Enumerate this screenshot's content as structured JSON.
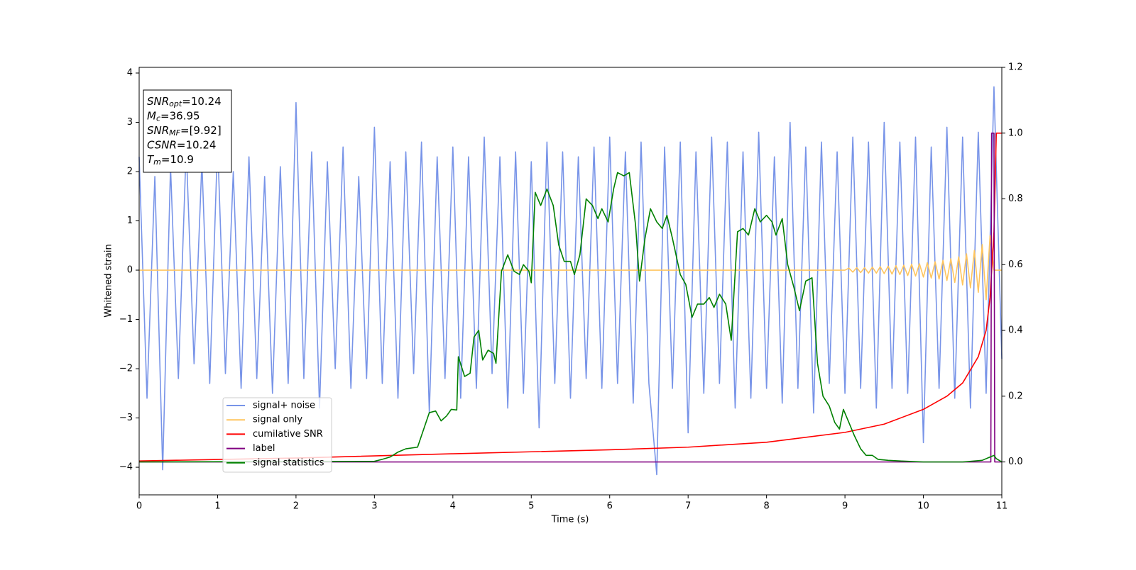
{
  "chart_data": {
    "type": "line",
    "xlabel": "Time (s)",
    "ylabel": "Whitened strain",
    "xlim": [
      0,
      11
    ],
    "ylim": [
      -4.56,
      4.115
    ],
    "y2lim": [
      -0.1,
      1.2
    ],
    "xticks": [
      0,
      1,
      2,
      3,
      4,
      5,
      6,
      7,
      8,
      9,
      10,
      11
    ],
    "yticks": [
      {
        "value": -4,
        "label": "−4"
      },
      {
        "value": -3,
        "label": "−3"
      },
      {
        "value": -2,
        "label": "−2"
      },
      {
        "value": -1,
        "label": "−1"
      },
      0,
      1,
      2,
      3,
      4
    ],
    "y2ticks": [
      {
        "value": 0,
        "label": "0.0"
      },
      0.2,
      0.4,
      0.6,
      0.8,
      {
        "value": 1,
        "label": "1.0"
      },
      1.2
    ],
    "grid": false,
    "legend": "lower left",
    "annotation": [
      {
        "name": "SNR",
        "sub": "opt",
        "value": "=10.24"
      },
      {
        "name": "M",
        "sub": "c",
        "value": "=36.95"
      },
      {
        "name": "SNR",
        "sub": "MF",
        "value": "=[9.92]"
      },
      {
        "name": "CSNR",
        "value": "=10.24"
      },
      {
        "name": "T",
        "sub": "m",
        "value": "=10.9"
      }
    ],
    "series": [
      {
        "name": "signal+ noise",
        "color": "#7894e8",
        "x": [
          0,
          0.1,
          0.2,
          0.3,
          0.4,
          0.5,
          0.6,
          0.7,
          0.8,
          0.9,
          1,
          1.1,
          1.2,
          1.3,
          1.4,
          1.5,
          1.6,
          1.7,
          1.8,
          1.9,
          2,
          2.1,
          2.2,
          2.3,
          2.4,
          2.5,
          2.6,
          2.7,
          2.8,
          2.9,
          3,
          3.1,
          3.2,
          3.3,
          3.4,
          3.5,
          3.6,
          3.7,
          3.8,
          3.9,
          4,
          4.1,
          4.2,
          4.3,
          4.4,
          4.5,
          4.6,
          4.7,
          4.8,
          4.9,
          5,
          5.1,
          5.2,
          5.3,
          5.4,
          5.5,
          5.6,
          5.7,
          5.8,
          5.9,
          6,
          6.1,
          6.2,
          6.3,
          6.4,
          6.5,
          6.6,
          6.7,
          6.8,
          6.9,
          7,
          7.1,
          7.2,
          7.3,
          7.4,
          7.5,
          7.6,
          7.7,
          7.8,
          7.9,
          8,
          8.1,
          8.2,
          8.3,
          8.4,
          8.5,
          8.6,
          8.7,
          8.8,
          8.9,
          9,
          9.1,
          9.2,
          9.3,
          9.4,
          9.5,
          9.6,
          9.7,
          9.8,
          9.9,
          10,
          10.1,
          10.2,
          10.3,
          10.4,
          10.5,
          10.6,
          10.7,
          10.8,
          10.9,
          11
        ],
        "values": [
          2.3,
          -2.6,
          1.9,
          -4.05,
          2.1,
          -2.2,
          2.5,
          -1.9,
          2.2,
          -2.3,
          2.6,
          -2.1,
          2.0,
          -2.4,
          2.3,
          -2.2,
          1.9,
          -2.5,
          2.1,
          -2.3,
          3.4,
          -2.2,
          2.4,
          -2.8,
          2.2,
          -2.0,
          2.5,
          -2.4,
          1.9,
          -2.2,
          2.9,
          -2.3,
          2.2,
          -2.6,
          2.4,
          -2.1,
          2.6,
          -2.9,
          2.3,
          -2.2,
          2.5,
          -2.6,
          2.3,
          -2.4,
          2.7,
          -2.1,
          2.3,
          -2.8,
          2.4,
          -2.5,
          2.2,
          -3.2,
          2.6,
          -2.3,
          2.4,
          -2.6,
          2.3,
          -2.2,
          2.5,
          -2.4,
          2.7,
          -2.3,
          2.4,
          -2.7,
          2.6,
          -2.3,
          -4.15,
          2.5,
          -2.4,
          2.6,
          -3.3,
          2.4,
          -2.5,
          2.7,
          -2.3,
          2.6,
          -2.8,
          2.4,
          -2.6,
          2.8,
          -2.4,
          2.3,
          -2.7,
          3.0,
          -2.4,
          2.5,
          -2.9,
          2.6,
          -2.3,
          2.4,
          -2.5,
          2.7,
          -2.4,
          2.6,
          -2.8,
          3.0,
          -2.4,
          2.6,
          -2.5,
          2.7,
          -3.5,
          2.5,
          -2.4,
          2.9,
          -2.6,
          2.7,
          -2.8,
          2.8,
          -2.5,
          3.72,
          -1.8
        ]
      },
      {
        "name": "signal only",
        "color": "#ffc55e",
        "x": [
          0,
          9,
          9.05,
          9.1,
          9.15,
          9.2,
          9.25,
          9.3,
          9.35,
          9.4,
          9.45,
          9.5,
          9.55,
          9.6,
          9.65,
          9.7,
          9.75,
          9.8,
          9.85,
          9.9,
          9.95,
          10,
          10.05,
          10.1,
          10.15,
          10.2,
          10.25,
          10.3,
          10.35,
          10.4,
          10.45,
          10.5,
          10.55,
          10.6,
          10.65,
          10.7,
          10.75,
          10.8,
          10.85,
          10.9,
          11
        ],
        "values": [
          0,
          0,
          0.04,
          -0.04,
          0.05,
          -0.05,
          0.05,
          -0.06,
          0.06,
          -0.06,
          0.07,
          -0.07,
          0.08,
          -0.08,
          0.09,
          -0.09,
          0.1,
          -0.11,
          0.12,
          -0.12,
          0.13,
          -0.14,
          0.15,
          -0.16,
          0.17,
          -0.18,
          0.2,
          -0.21,
          0.23,
          -0.25,
          0.27,
          -0.3,
          0.33,
          -0.36,
          0.4,
          -0.45,
          0.52,
          -0.6,
          0.7,
          0,
          0
        ]
      },
      {
        "name": "cumilative SNR",
        "color": "#ff0000",
        "axis": "y2",
        "x": [
          0,
          2,
          4,
          6,
          7,
          8,
          9,
          9.5,
          10,
          10.3,
          10.5,
          10.7,
          10.8,
          10.85,
          10.9,
          10.93,
          11
        ],
        "values": [
          0.003,
          0.012,
          0.025,
          0.037,
          0.045,
          0.06,
          0.09,
          0.115,
          0.16,
          0.2,
          0.24,
          0.32,
          0.4,
          0.5,
          0.7,
          1.0,
          1.0
        ]
      },
      {
        "name": "label",
        "color": "#800080",
        "axis": "y2",
        "x": [
          0,
          10.86,
          10.87,
          10.9,
          10.91,
          11
        ],
        "values": [
          0,
          0,
          1,
          1,
          0,
          0
        ]
      },
      {
        "name": "signal statistics",
        "color": "#008000",
        "axis": "y2",
        "x": [
          0,
          3,
          3.1,
          3.2,
          3.3,
          3.4,
          3.55,
          3.6,
          3.7,
          3.78,
          3.85,
          3.92,
          3.98,
          4.05,
          4.07,
          4.15,
          4.22,
          4.27,
          4.33,
          4.38,
          4.45,
          4.52,
          4.55,
          4.62,
          4.7,
          4.78,
          4.85,
          4.9,
          4.97,
          5,
          5.05,
          5.12,
          5.2,
          5.28,
          5.35,
          5.42,
          5.5,
          5.55,
          5.62,
          5.7,
          5.78,
          5.85,
          5.9,
          5.98,
          6.05,
          6.1,
          6.18,
          6.25,
          6.33,
          6.38,
          6.45,
          6.52,
          6.6,
          6.67,
          6.73,
          6.8,
          6.9,
          6.97,
          7.05,
          7.12,
          7.2,
          7.27,
          7.33,
          7.4,
          7.48,
          7.55,
          7.63,
          7.7,
          7.77,
          7.85,
          7.92,
          8,
          8.07,
          8.12,
          8.2,
          8.27,
          8.35,
          8.42,
          8.5,
          8.58,
          8.65,
          8.72,
          8.8,
          8.87,
          8.93,
          8.98,
          9.05,
          9.12,
          9.2,
          9.27,
          9.35,
          9.42,
          9.55,
          9.7,
          10,
          10.5,
          10.75,
          10.85,
          10.9,
          10.93,
          11
        ],
        "values": [
          0,
          0.002,
          0.008,
          0.015,
          0.03,
          0.04,
          0.045,
          0.08,
          0.15,
          0.155,
          0.125,
          0.14,
          0.16,
          0.158,
          0.32,
          0.26,
          0.27,
          0.38,
          0.4,
          0.31,
          0.34,
          0.33,
          0.3,
          0.58,
          0.63,
          0.58,
          0.57,
          0.6,
          0.58,
          0.545,
          0.82,
          0.78,
          0.83,
          0.78,
          0.66,
          0.61,
          0.61,
          0.57,
          0.63,
          0.8,
          0.78,
          0.74,
          0.77,
          0.73,
          0.83,
          0.88,
          0.87,
          0.88,
          0.72,
          0.55,
          0.68,
          0.77,
          0.73,
          0.71,
          0.75,
          0.68,
          0.57,
          0.54,
          0.44,
          0.48,
          0.48,
          0.5,
          0.47,
          0.51,
          0.48,
          0.37,
          0.7,
          0.71,
          0.69,
          0.77,
          0.73,
          0.75,
          0.73,
          0.69,
          0.74,
          0.6,
          0.53,
          0.46,
          0.55,
          0.56,
          0.3,
          0.2,
          0.17,
          0.12,
          0.1,
          0.16,
          0.12,
          0.08,
          0.04,
          0.02,
          0.02,
          0.008,
          0.005,
          0.003,
          0,
          0,
          0.005,
          0.015,
          0.02,
          0.01,
          0
        ]
      }
    ]
  }
}
